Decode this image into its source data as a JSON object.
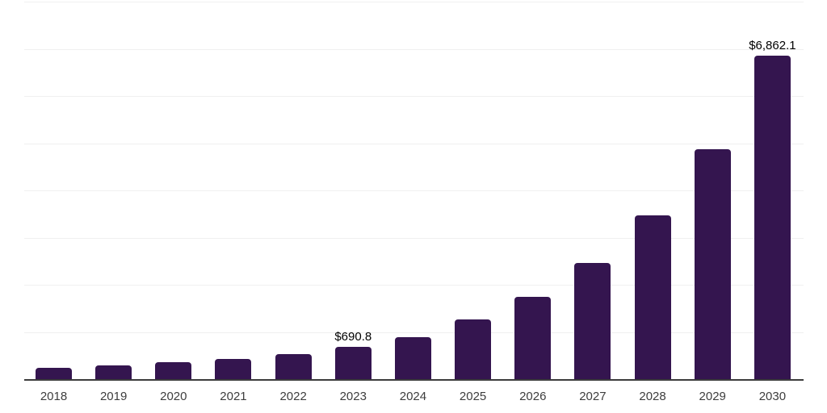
{
  "chart_data": {
    "type": "bar",
    "title": "",
    "xlabel": "",
    "ylabel": "",
    "categories": [
      "2018",
      "2019",
      "2020",
      "2021",
      "2022",
      "2023",
      "2024",
      "2025",
      "2026",
      "2027",
      "2028",
      "2029",
      "2030"
    ],
    "values": [
      240,
      290,
      360,
      430,
      530,
      690.8,
      895,
      1270,
      1750,
      2460,
      3465,
      4870,
      6862.1
    ],
    "value_labels": [
      "",
      "",
      "",
      "",
      "",
      "$690.8",
      "",
      "",
      "",
      "",
      "",
      "",
      "$6,862.1"
    ],
    "ylim": [
      0,
      8000
    ],
    "gridline_step": 1000,
    "grid": "horizontal-only",
    "legend": "none",
    "y_tick_labels": "none",
    "bar_color": "#34154F",
    "axis_line_color": "#3C3C3C",
    "gridline_color": "#F0F0F0",
    "x_label_color": "#3D3D3D",
    "value_label_color": "#000000",
    "background_color": "#FFFFFF"
  }
}
